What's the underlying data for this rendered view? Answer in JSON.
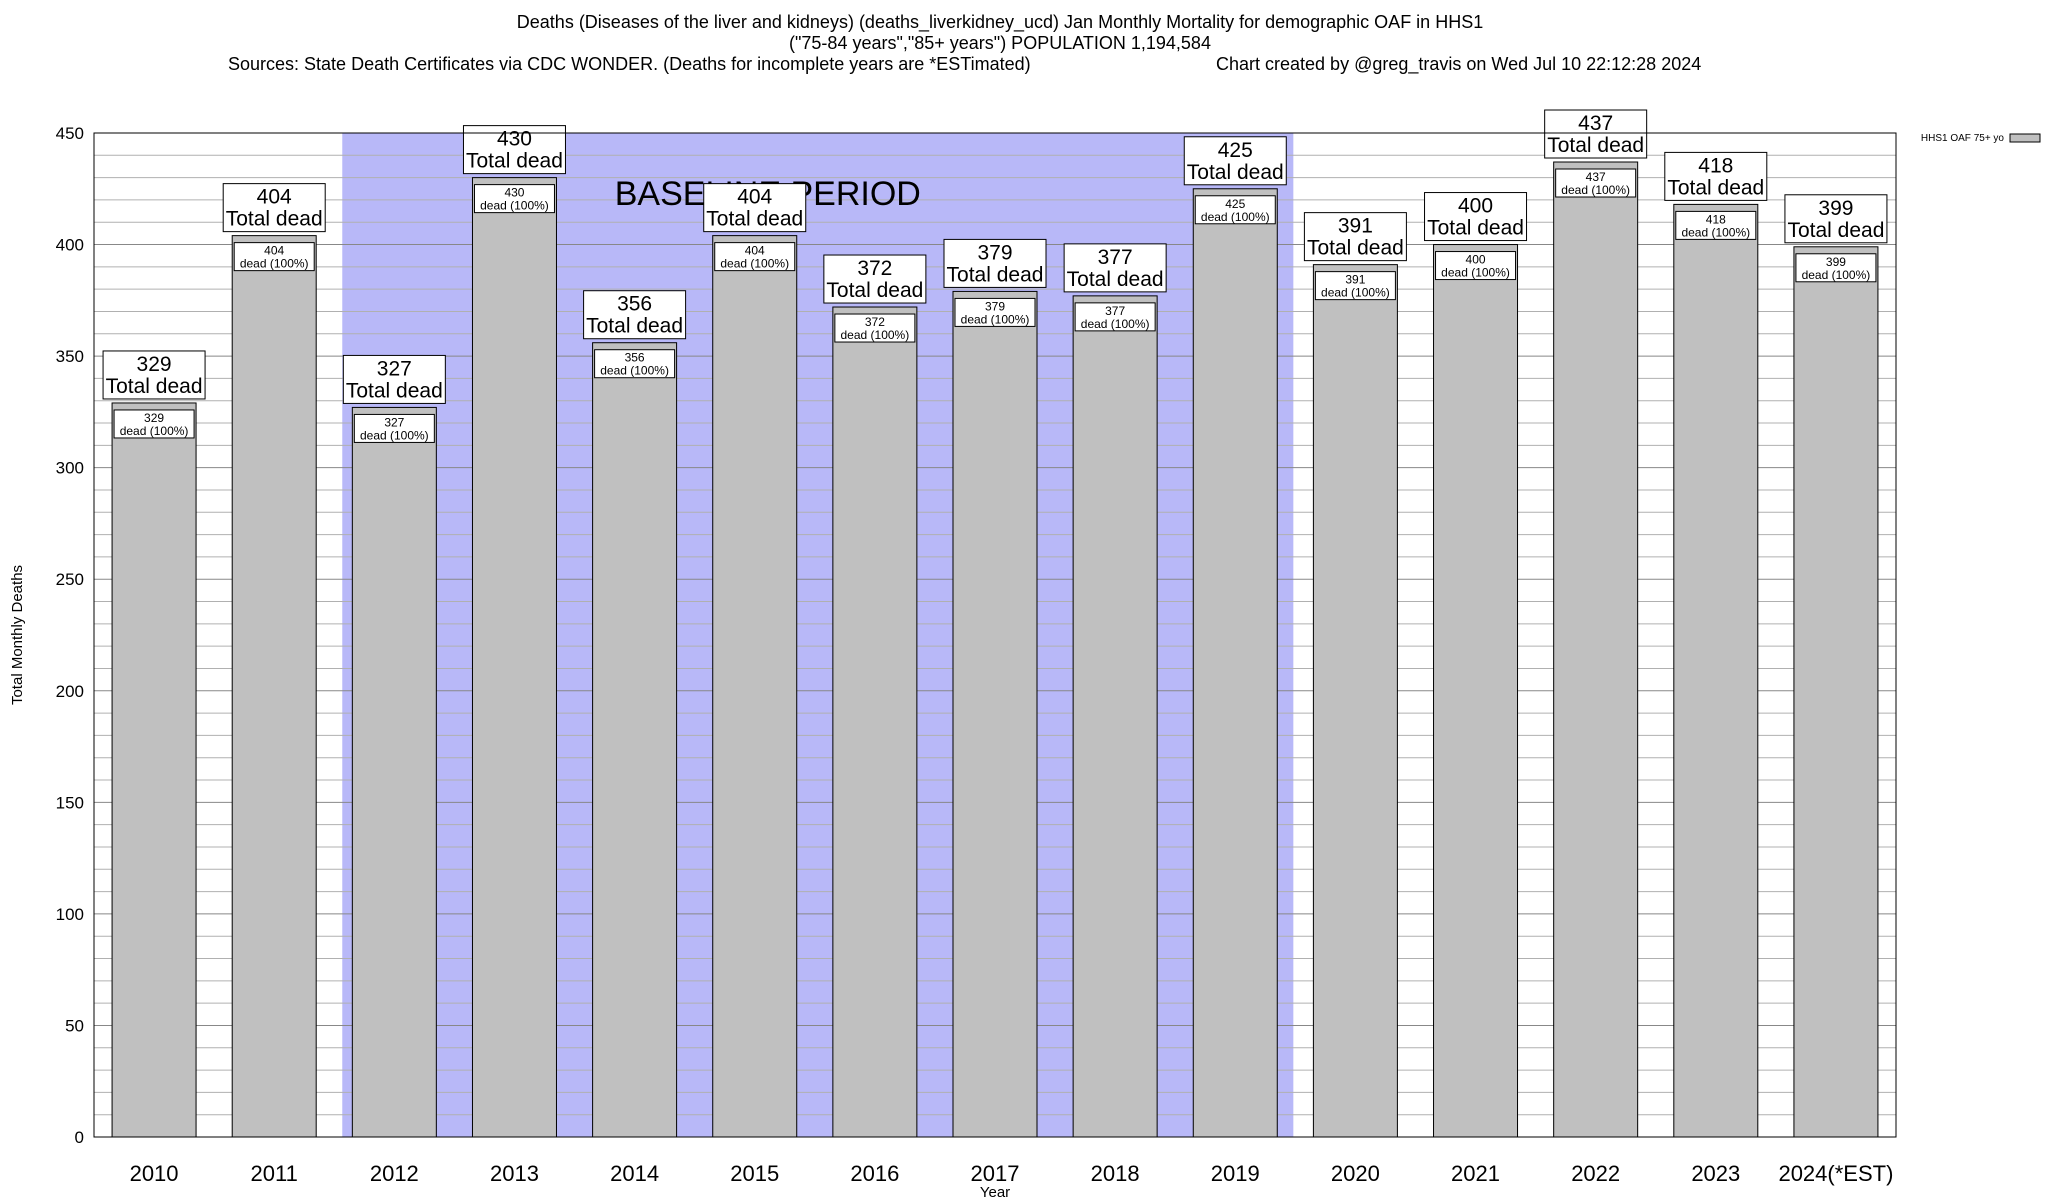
{
  "header": {
    "title_line1": "Deaths (Diseases of the liver and kidneys) (deaths_liverkidney_ucd) Jan Monthly Mortality for demographic OAF in HHS1",
    "title_line2": "(\"75-84 years\",\"85+ years\") POPULATION 1,194,584",
    "sources": "Sources: State Death Certificates via CDC WONDER. (Deaths for incomplete years are *ESTimated)",
    "created_by": "Chart created by @greg_travis on Wed Jul 10 22:12:28 2024"
  },
  "chart_data": {
    "type": "bar",
    "xlabel": "Year",
    "ylabel": "Total Monthly Deaths",
    "ylim": [
      0,
      450
    ],
    "yticks": [
      0,
      50,
      100,
      150,
      200,
      250,
      300,
      350,
      400,
      450
    ],
    "grid": "horizontal minor lines every 10",
    "categories": [
      "2010",
      "2011",
      "2012",
      "2013",
      "2014",
      "2015",
      "2016",
      "2017",
      "2018",
      "2019",
      "2020",
      "2021",
      "2022",
      "2023",
      "2024(*EST)"
    ],
    "series": [
      {
        "name": "HHS1 OAF 75+ yo",
        "values": [
          329,
          404,
          327,
          430,
          356,
          404,
          372,
          379,
          377,
          425,
          391,
          400,
          437,
          418,
          399
        ]
      }
    ],
    "total_label": "Total dead",
    "inner_label": "dead (100%)",
    "baseline": {
      "label": "BASELINE PERIOD",
      "start": "2012",
      "end": "2019"
    },
    "legend_position": "top-right",
    "colors": {
      "bar": "#c0c0c0",
      "baseline": "#b8b8f8"
    }
  }
}
